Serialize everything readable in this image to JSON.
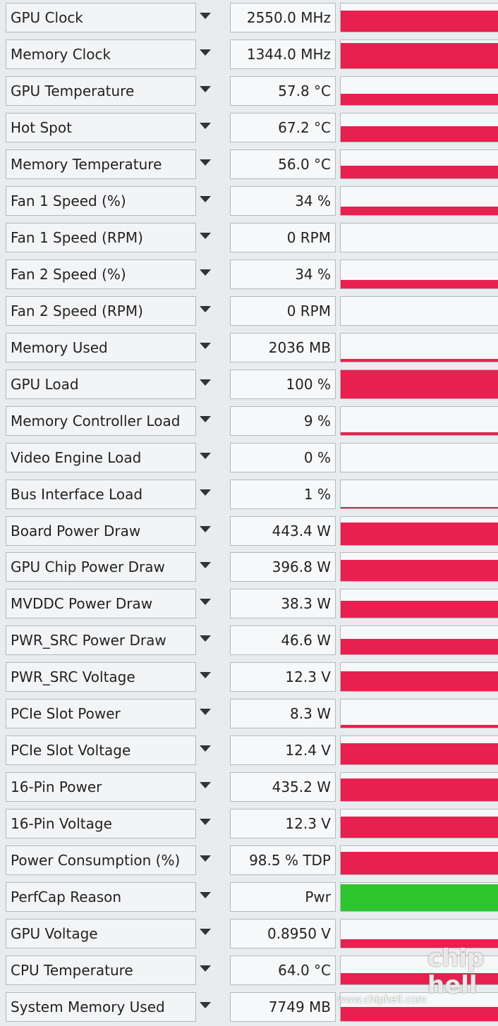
{
  "sensors": [
    {
      "label": "GPU Clock",
      "value": "2550.0 MHz"
    },
    {
      "label": "Memory Clock",
      "value": "1344.0 MHz"
    },
    {
      "label": "GPU Temperature",
      "value": "57.8 °C"
    },
    {
      "label": "Hot Spot",
      "value": "67.2 °C"
    },
    {
      "label": "Memory Temperature",
      "value": "56.0 °C"
    },
    {
      "label": "Fan 1 Speed (%)",
      "value": "34 %"
    },
    {
      "label": "Fan 1 Speed (RPM)",
      "value": "0 RPM"
    },
    {
      "label": "Fan 2 Speed (%)",
      "value": "34 %"
    },
    {
      "label": "Fan 2 Speed (RPM)",
      "value": "0 RPM"
    },
    {
      "label": "Memory Used",
      "value": "2036 MB"
    },
    {
      "label": "GPU Load",
      "value": "100 %"
    },
    {
      "label": "Memory Controller Load",
      "value": "9 %"
    },
    {
      "label": "Video Engine Load",
      "value": "0 %"
    },
    {
      "label": "Bus Interface Load",
      "value": "1 %"
    },
    {
      "label": "Board Power Draw",
      "value": "443.4 W"
    },
    {
      "label": "GPU Chip Power Draw",
      "value": "396.8 W"
    },
    {
      "label": "MVDDC Power Draw",
      "value": "38.3 W"
    },
    {
      "label": "PWR_SRC Power Draw",
      "value": "46.6 W"
    },
    {
      "label": "PWR_SRC Voltage",
      "value": "12.3 V"
    },
    {
      "label": "PCIe Slot Power",
      "value": "8.3 W"
    },
    {
      "label": "PCIe Slot Voltage",
      "value": "12.4 V"
    },
    {
      "label": "16-Pin Power",
      "value": "435.2 W"
    },
    {
      "label": "16-Pin Voltage",
      "value": "12.3 V"
    },
    {
      "label": "Power Consumption (%)",
      "value": "98.5 % TDP"
    },
    {
      "label": "PerfCap Reason",
      "value": "Pwr"
    },
    {
      "label": "GPU Voltage",
      "value": "0.8950 V"
    },
    {
      "label": "CPU Temperature",
      "value": "64.0 °C"
    },
    {
      "label": "System Memory Used",
      "value": "7749 MB"
    }
  ],
  "watermark": {
    "url": "www.chiphell.com",
    "logo_top": "chip",
    "logo_bottom": "hell"
  }
}
